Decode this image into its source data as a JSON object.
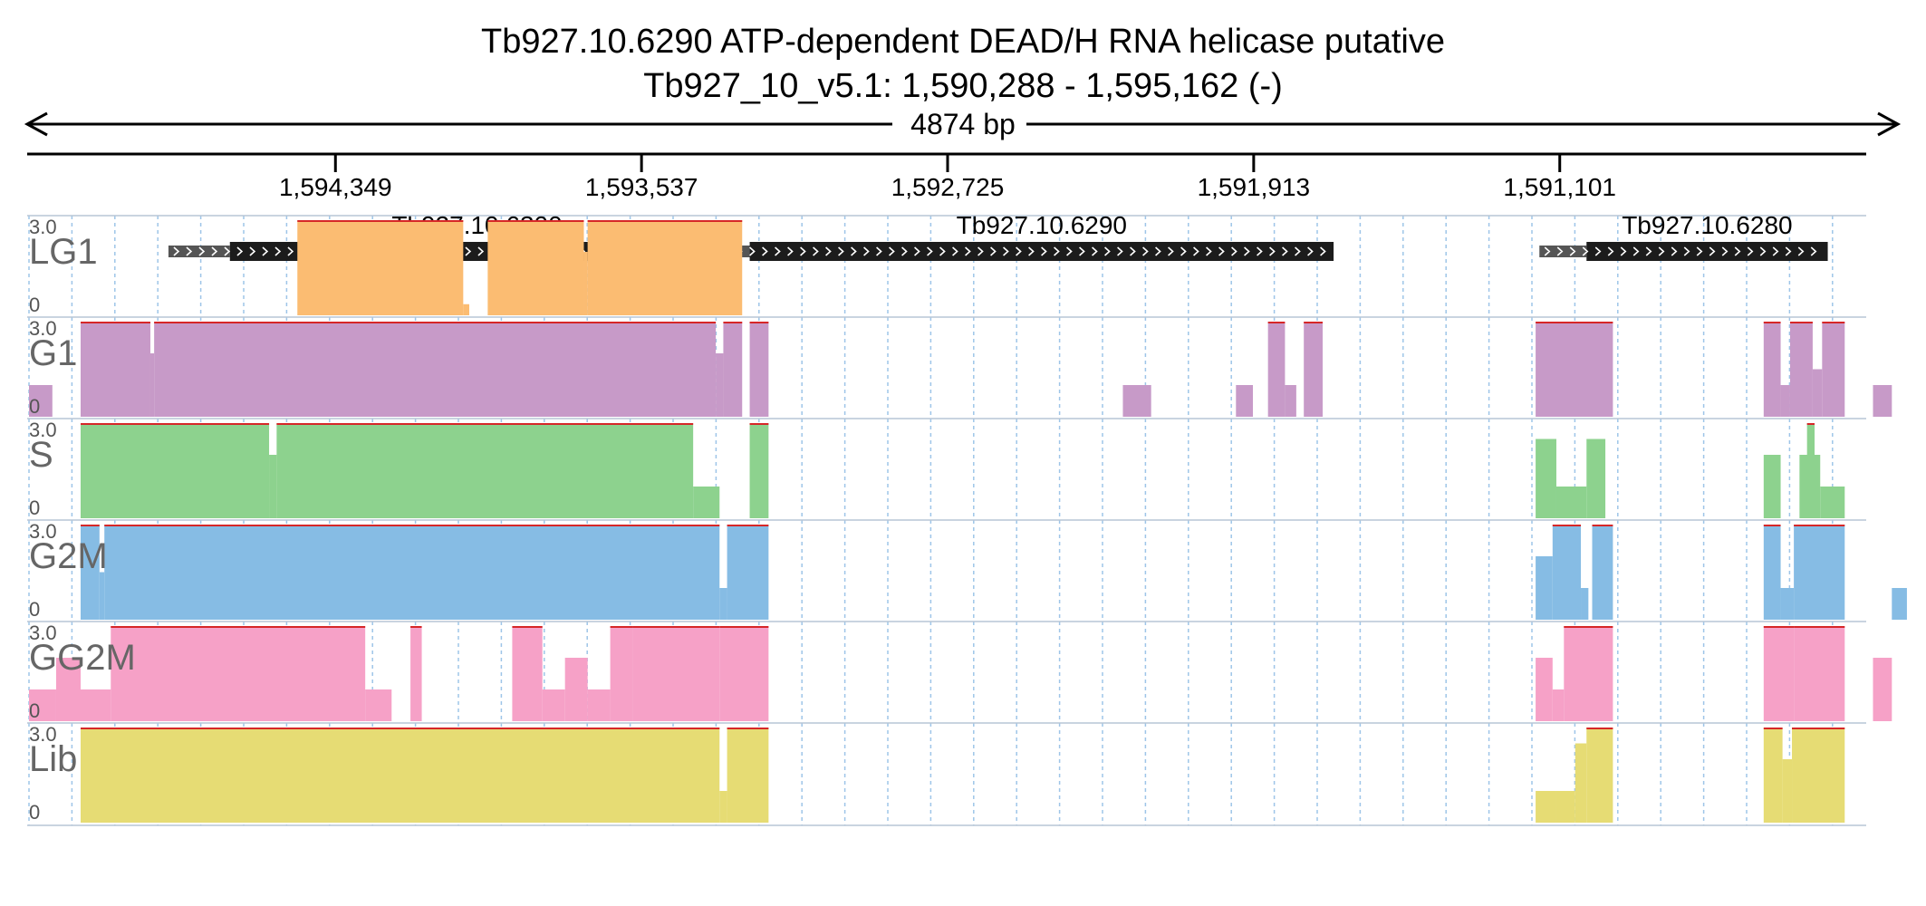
{
  "header": {
    "title": "Tb927.10.6290  ATP-dependent DEAD/H RNA helicase  putative",
    "location": "Tb927_10_v5.1: 1,590,288 - 1,595,162 (-)",
    "span_label": "4874 bp"
  },
  "colors": {
    "LG1": "#fbbc72",
    "G1": "#c79ac8",
    "S": "#8dd28e",
    "G2M": "#86bce4",
    "GG2M": "#f6a1c7",
    "Lib": "#e6dc74",
    "clip_line": "#d62728",
    "gene": "#1c1c1c",
    "utr": "#555555",
    "grid": "#9ec5e8"
  },
  "chart_data": {
    "type": "genome-coverage",
    "region": {
      "chrom": "Tb927_10_v5.1",
      "start": 1590288,
      "end": 1595162,
      "strand": "-"
    },
    "ticks": [
      {
        "pos": 1594349,
        "label": "1,594,349"
      },
      {
        "pos": 1593537,
        "label": "1,593,537"
      },
      {
        "pos": 1592725,
        "label": "1,592,725"
      },
      {
        "pos": 1591913,
        "label": "1,591,913"
      },
      {
        "pos": 1591101,
        "label": "1,591,101"
      }
    ],
    "genes": [
      {
        "name": "Tb927.10.6300",
        "cds": [
          1593318,
          1594629
        ],
        "utr": [
          1594629,
          1594792
        ]
      },
      {
        "name": "Tb927.10.6290",
        "cds": [
          1591701,
          1593250
        ],
        "utr": [
          1593250,
          1593298
        ]
      },
      {
        "name": "Tb927.10.6280",
        "cds": [
          1590390,
          1591030
        ],
        "utr": [
          1591030,
          1591155
        ]
      }
    ],
    "y_range": [
      0,
      3.0
    ],
    "y_max_label": "3.0",
    "y_min_label": "0",
    "tracks": [
      {
        "name": "LG1",
        "intervals": [
          [
            1594450,
            1594010,
            3.0
          ],
          [
            1594010,
            1593994,
            0.35
          ],
          [
            1593945,
            1593690,
            3.0
          ],
          [
            1593690,
            1593680,
            2.0
          ],
          [
            1593680,
            1593270,
            3.0
          ]
        ]
      },
      {
        "name": "G1",
        "intervals": [
          [
            1595162,
            1595100,
            1.0
          ],
          [
            1595025,
            1594840,
            3.0
          ],
          [
            1594840,
            1594830,
            2.0
          ],
          [
            1594830,
            1593340,
            3.0
          ],
          [
            1593340,
            1593320,
            2.0
          ],
          [
            1593320,
            1593270,
            3.0
          ],
          [
            1593250,
            1593200,
            3.0
          ],
          [
            1592260,
            1592185,
            1.0
          ],
          [
            1591960,
            1591915,
            1.0
          ],
          [
            1591875,
            1591830,
            3.0
          ],
          [
            1591830,
            1591800,
            1.0
          ],
          [
            1591780,
            1591730,
            3.0
          ],
          [
            1591165,
            1590960,
            3.0
          ],
          [
            1590560,
            1590515,
            3.0
          ],
          [
            1590515,
            1590490,
            1.0
          ],
          [
            1590490,
            1590430,
            3.0
          ],
          [
            1590430,
            1590405,
            1.5
          ],
          [
            1590405,
            1590345,
            3.0
          ],
          [
            1590270,
            1590220,
            1.0
          ]
        ]
      },
      {
        "name": "S",
        "intervals": [
          [
            1595025,
            1594525,
            3.0
          ],
          [
            1594525,
            1594505,
            2.0
          ],
          [
            1594505,
            1593400,
            3.0
          ],
          [
            1593400,
            1593330,
            1.0
          ],
          [
            1593250,
            1593200,
            3.0
          ],
          [
            1591165,
            1591110,
            2.5
          ],
          [
            1591110,
            1591030,
            1.0
          ],
          [
            1591030,
            1590980,
            2.5
          ],
          [
            1590560,
            1590515,
            2.0
          ],
          [
            1590410,
            1590345,
            1.0
          ],
          [
            1590465,
            1590410,
            2.0
          ],
          [
            1590445,
            1590425,
            3.0
          ]
        ]
      },
      {
        "name": "G2M",
        "intervals": [
          [
            1595025,
            1594975,
            3.0
          ],
          [
            1594975,
            1594962,
            1.5
          ],
          [
            1594962,
            1593330,
            3.0
          ],
          [
            1593330,
            1593310,
            1.0
          ],
          [
            1593310,
            1593200,
            3.0
          ],
          [
            1591165,
            1591120,
            2.0
          ],
          [
            1591120,
            1591045,
            3.0
          ],
          [
            1591045,
            1591025,
            1.0
          ],
          [
            1591015,
            1590960,
            3.0
          ],
          [
            1590560,
            1590515,
            3.0
          ],
          [
            1590515,
            1590480,
            1.0
          ],
          [
            1590480,
            1590345,
            3.0
          ],
          [
            1590220,
            1590180,
            1.0
          ]
        ]
      },
      {
        "name": "GG2M",
        "intervals": [
          [
            1595162,
            1595090,
            1.0
          ],
          [
            1595090,
            1595025,
            2.0
          ],
          [
            1595025,
            1594945,
            1.0
          ],
          [
            1594945,
            1594270,
            3.0
          ],
          [
            1594270,
            1594200,
            1.0
          ],
          [
            1594150,
            1594120,
            3.0
          ],
          [
            1593880,
            1593800,
            3.0
          ],
          [
            1593800,
            1593740,
            1.0
          ],
          [
            1593740,
            1593680,
            2.0
          ],
          [
            1593680,
            1593620,
            1.0
          ],
          [
            1593620,
            1593560,
            3.0
          ],
          [
            1593560,
            1593330,
            3.0
          ],
          [
            1593330,
            1593200,
            3.0
          ],
          [
            1591165,
            1591120,
            2.0
          ],
          [
            1591120,
            1591090,
            1.0
          ],
          [
            1591090,
            1590960,
            3.0
          ],
          [
            1590560,
            1590480,
            3.0
          ],
          [
            1590480,
            1590345,
            3.0
          ],
          [
            1590270,
            1590220,
            2.0
          ]
        ]
      },
      {
        "name": "Lib",
        "intervals": [
          [
            1595025,
            1593330,
            3.0
          ],
          [
            1593330,
            1593310,
            1.0
          ],
          [
            1593310,
            1593200,
            3.0
          ],
          [
            1591165,
            1591110,
            1.0
          ],
          [
            1591110,
            1591060,
            1.0
          ],
          [
            1591060,
            1591030,
            2.5
          ],
          [
            1591030,
            1590960,
            3.0
          ],
          [
            1590560,
            1590510,
            3.0
          ],
          [
            1590510,
            1590485,
            2.0
          ],
          [
            1590485,
            1590345,
            3.0
          ]
        ]
      }
    ]
  }
}
